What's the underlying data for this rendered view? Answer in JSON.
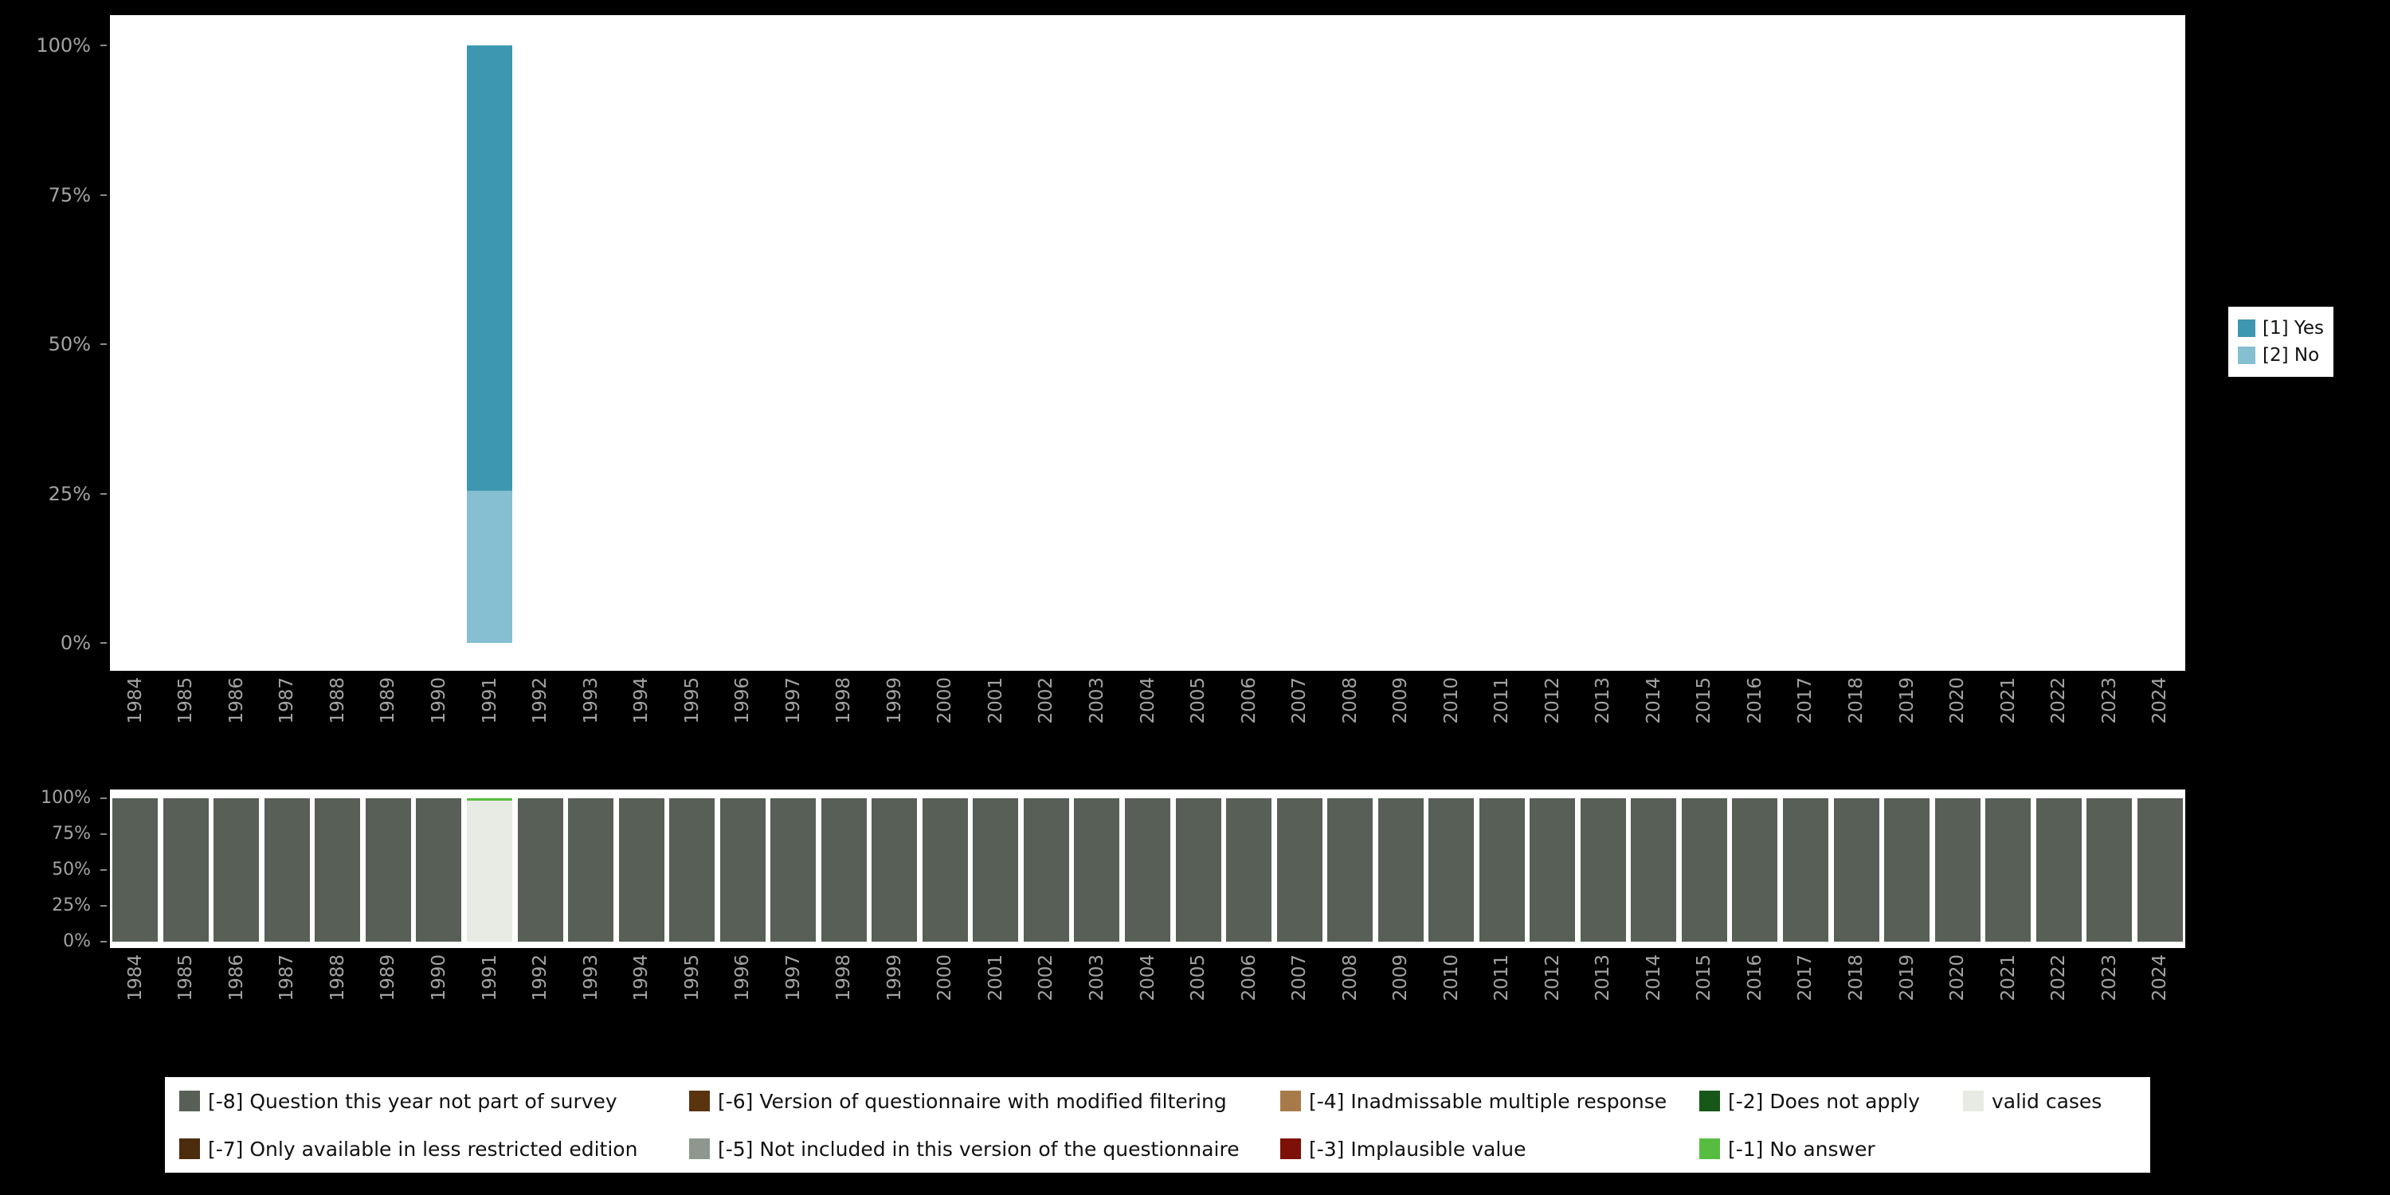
{
  "chart_data": [
    {
      "type": "bar",
      "stacked": true,
      "title": "",
      "xlabel": "",
      "ylabel": "",
      "ylim": [
        0,
        100
      ],
      "grid": false,
      "categories": [
        "1984",
        "1985",
        "1986",
        "1987",
        "1988",
        "1989",
        "1990",
        "1991",
        "1992",
        "1993",
        "1994",
        "1995",
        "1996",
        "1997",
        "1998",
        "1999",
        "2000",
        "2001",
        "2002",
        "2003",
        "2004",
        "2005",
        "2006",
        "2007",
        "2008",
        "2009",
        "2010",
        "2011",
        "2012",
        "2013",
        "2014",
        "2015",
        "2016",
        "2017",
        "2018",
        "2019",
        "2020",
        "2021",
        "2022",
        "2023",
        "2024"
      ],
      "yticks": [
        {
          "v": 0,
          "label": "0%"
        },
        {
          "v": 25,
          "label": "25%"
        },
        {
          "v": 50,
          "label": "50%"
        },
        {
          "v": 75,
          "label": "75%"
        },
        {
          "v": 100,
          "label": "100%"
        }
      ],
      "series": [
        {
          "name": "[2] No",
          "color": "#85bfd1",
          "values": [
            0,
            0,
            0,
            0,
            0,
            0,
            0,
            25.5,
            0,
            0,
            0,
            0,
            0,
            0,
            0,
            0,
            0,
            0,
            0,
            0,
            0,
            0,
            0,
            0,
            0,
            0,
            0,
            0,
            0,
            0,
            0,
            0,
            0,
            0,
            0,
            0,
            0,
            0,
            0,
            0,
            0
          ]
        },
        {
          "name": "[1] Yes",
          "color": "#3e97b1",
          "values": [
            0,
            0,
            0,
            0,
            0,
            0,
            0,
            74.5,
            0,
            0,
            0,
            0,
            0,
            0,
            0,
            0,
            0,
            0,
            0,
            0,
            0,
            0,
            0,
            0,
            0,
            0,
            0,
            0,
            0,
            0,
            0,
            0,
            0,
            0,
            0,
            0,
            0,
            0,
            0,
            0,
            0
          ]
        }
      ],
      "legend": {
        "position": "right",
        "items": [
          {
            "label": "[1] Yes",
            "color": "#3e97b1"
          },
          {
            "label": "[2] No",
            "color": "#85bfd1"
          }
        ]
      }
    },
    {
      "type": "bar",
      "stacked": true,
      "title": "",
      "xlabel": "",
      "ylabel": "",
      "ylim": [
        0,
        100
      ],
      "grid": false,
      "categories": [
        "1984",
        "1985",
        "1986",
        "1987",
        "1988",
        "1989",
        "1990",
        "1991",
        "1992",
        "1993",
        "1994",
        "1995",
        "1996",
        "1997",
        "1998",
        "1999",
        "2000",
        "2001",
        "2002",
        "2003",
        "2004",
        "2005",
        "2006",
        "2007",
        "2008",
        "2009",
        "2010",
        "2011",
        "2012",
        "2013",
        "2014",
        "2015",
        "2016",
        "2017",
        "2018",
        "2019",
        "2020",
        "2021",
        "2022",
        "2023",
        "2024"
      ],
      "yticks": [
        {
          "v": 0,
          "label": "0%"
        },
        {
          "v": 25,
          "label": "25%"
        },
        {
          "v": 50,
          "label": "50%"
        },
        {
          "v": 75,
          "label": "75%"
        },
        {
          "v": 100,
          "label": "100%"
        }
      ],
      "series": [
        {
          "name": "[-8] Question this year not part of survey",
          "color": "#575f57",
          "values": [
            100,
            100,
            100,
            100,
            100,
            100,
            100,
            0,
            100,
            100,
            100,
            100,
            100,
            100,
            100,
            100,
            100,
            100,
            100,
            100,
            100,
            100,
            100,
            100,
            100,
            100,
            100,
            100,
            100,
            100,
            100,
            100,
            100,
            100,
            100,
            100,
            100,
            100,
            100,
            100,
            100
          ]
        },
        {
          "name": "valid cases",
          "color": "#e8ebe3",
          "values": [
            0,
            0,
            0,
            0,
            0,
            0,
            0,
            98.5,
            0,
            0,
            0,
            0,
            0,
            0,
            0,
            0,
            0,
            0,
            0,
            0,
            0,
            0,
            0,
            0,
            0,
            0,
            0,
            0,
            0,
            0,
            0,
            0,
            0,
            0,
            0,
            0,
            0,
            0,
            0,
            0,
            0
          ]
        },
        {
          "name": "[-1] No answer",
          "color": "#57bd41",
          "values": [
            0,
            0,
            0,
            0,
            0,
            0,
            0,
            1.5,
            0,
            0,
            0,
            0,
            0,
            0,
            0,
            0,
            0,
            0,
            0,
            0,
            0,
            0,
            0,
            0,
            0,
            0,
            0,
            0,
            0,
            0,
            0,
            0,
            0,
            0,
            0,
            0,
            0,
            0,
            0,
            0,
            0
          ]
        }
      ],
      "legend": {
        "position": "bottom",
        "rows": [
          [
            {
              "label": "[-8] Question this year not part of survey",
              "color": "#575f57"
            },
            {
              "label": "[-6] Version of questionnaire with modified filtering",
              "color": "#5a330f"
            },
            {
              "label": "[-4] Inadmissable multiple response",
              "color": "#a87a4a"
            },
            {
              "label": "[-2] Does not apply",
              "color": "#175718"
            },
            {
              "label": "valid cases",
              "color": "#e8ebe3"
            }
          ],
          [
            {
              "label": "[-7] Only available in less restricted edition",
              "color": "#4b2c0d"
            },
            {
              "label": "[-5] Not included in this version of the questionnaire",
              "color": "#8e978e"
            },
            {
              "label": "[-3] Implausible value",
              "color": "#7d1007"
            },
            {
              "label": "[-1] No answer",
              "color": "#57bd41"
            }
          ]
        ]
      }
    }
  ]
}
